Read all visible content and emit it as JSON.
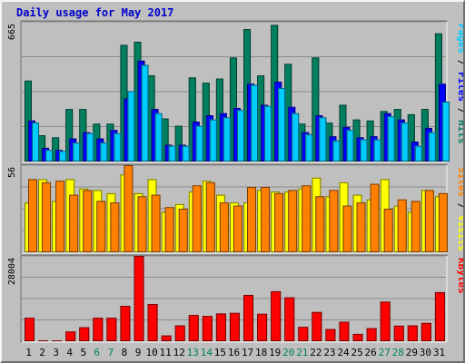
{
  "chart_data": [
    {
      "type": "bar",
      "title": "Daily usage for May 2017",
      "categories": [
        "1",
        "2",
        "3",
        "4",
        "5",
        "6",
        "7",
        "8",
        "9",
        "10",
        "11",
        "12",
        "13",
        "14",
        "15",
        "16",
        "17",
        "18",
        "19",
        "20",
        "21",
        "22",
        "23",
        "24",
        "25",
        "26",
        "27",
        "28",
        "29",
        "30",
        "31"
      ],
      "weekend_days": [
        "6",
        "7",
        "13",
        "14",
        "20",
        "21",
        "27",
        "28"
      ],
      "ylim": [
        0,
        665
      ],
      "y_tick_label": "665",
      "ylabel_parts": [
        "Pages",
        "Files",
        "Hits"
      ],
      "ylabel_separator": " / ",
      "series": [
        {
          "name": "Hits",
          "color": "#007f5f",
          "values": [
            385,
            125,
            115,
            250,
            250,
            180,
            180,
            555,
            570,
            410,
            205,
            170,
            400,
            375,
            395,
            495,
            630,
            410,
            650,
            465,
            180,
            495,
            185,
            270,
            200,
            195,
            240,
            250,
            225,
            250,
            610
          ]
        },
        {
          "name": "Files",
          "color": "#0000ff",
          "values": [
            195,
            65,
            55,
            110,
            140,
            110,
            150,
            300,
            480,
            250,
            80,
            80,
            190,
            220,
            230,
            255,
            370,
            270,
            380,
            260,
            140,
            220,
            120,
            165,
            115,
            120,
            230,
            200,
            95,
            160,
            370
          ]
        },
        {
          "name": "Pages",
          "color": "#00ccff",
          "values": [
            185,
            55,
            50,
            90,
            135,
            90,
            135,
            335,
            460,
            230,
            75,
            75,
            170,
            200,
            210,
            245,
            365,
            265,
            350,
            230,
            130,
            210,
            100,
            150,
            105,
            105,
            215,
            185,
            75,
            140,
            285
          ]
        }
      ]
    },
    {
      "type": "bar",
      "categories": [
        "1",
        "2",
        "3",
        "4",
        "5",
        "6",
        "7",
        "8",
        "9",
        "10",
        "11",
        "12",
        "13",
        "14",
        "15",
        "16",
        "17",
        "18",
        "19",
        "20",
        "21",
        "22",
        "23",
        "24",
        "25",
        "26",
        "27",
        "28",
        "29",
        "30",
        "31"
      ],
      "ylim": [
        0,
        56
      ],
      "y_tick_label": "56",
      "ylabel_parts": [
        "Sites",
        "Visits"
      ],
      "ylabel_separator": " / ",
      "series": [
        {
          "name": "Visits",
          "color": "#ffff00",
          "values": [
            32,
            47,
            33,
            47,
            41,
            40,
            38,
            50,
            38,
            47,
            26,
            31,
            39,
            46,
            37,
            32,
            32,
            40,
            39,
            39,
            41,
            48,
            36,
            45,
            37,
            34,
            47,
            30,
            26,
            40,
            36
          ]
        },
        {
          "name": "Sites",
          "color": "#ff8000",
          "values": [
            47,
            45,
            46,
            37,
            40,
            33,
            32,
            56,
            36,
            37,
            29,
            28,
            43,
            45,
            32,
            30,
            42,
            42,
            38,
            40,
            43,
            36,
            40,
            30,
            32,
            44,
            28,
            34,
            33,
            40,
            38
          ]
        }
      ]
    },
    {
      "type": "bar",
      "categories": [
        "1",
        "2",
        "3",
        "4",
        "5",
        "6",
        "7",
        "8",
        "9",
        "10",
        "11",
        "12",
        "13",
        "14",
        "15",
        "16",
        "17",
        "18",
        "19",
        "20",
        "21",
        "22",
        "23",
        "24",
        "25",
        "26",
        "27",
        "28",
        "29",
        "30",
        "31"
      ],
      "ylim": [
        0,
        28004
      ],
      "y_tick_label": "28004",
      "ylabel": "KBytes",
      "series": [
        {
          "name": "KBytes",
          "color": "#ff0000",
          "values": [
            7700,
            300,
            300,
            3200,
            4600,
            7700,
            7700,
            11600,
            28000,
            12200,
            1900,
            5200,
            8600,
            8300,
            9100,
            9300,
            15200,
            9000,
            16400,
            14400,
            4700,
            9600,
            4000,
            6400,
            2400,
            4300,
            13000,
            5100,
            5200,
            6000,
            16100
          ]
        }
      ]
    }
  ],
  "xaxis": {
    "weekday_color": "#000000",
    "weekend_color": "#00805f"
  }
}
